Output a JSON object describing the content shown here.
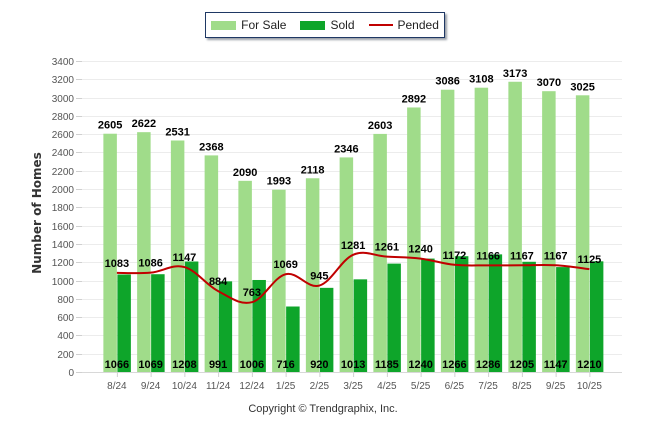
{
  "chart_data": {
    "type": "bar",
    "title": "",
    "xlabel": "",
    "ylabel": "Number of Homes",
    "ylim": [
      0,
      3400
    ],
    "ytick_step": 200,
    "grid": true,
    "legend_position": "top-center",
    "categories": [
      "8/24",
      "9/24",
      "10/24",
      "11/24",
      "12/24",
      "1/25",
      "2/25",
      "3/25",
      "4/25",
      "5/25",
      "6/25",
      "7/25",
      "8/25",
      "9/25",
      "10/25"
    ],
    "series": [
      {
        "name": "For Sale",
        "kind": "bar",
        "color": "#a0dc8a",
        "values": [
          2605,
          2622,
          2531,
          2368,
          2090,
          1993,
          2118,
          2346,
          2603,
          2892,
          3086,
          3108,
          3173,
          3070,
          3025
        ]
      },
      {
        "name": "Sold",
        "kind": "bar",
        "color": "#0ea52a",
        "values": [
          1066,
          1069,
          1208,
          991,
          1006,
          716,
          920,
          1013,
          1185,
          1240,
          1266,
          1286,
          1205,
          1147,
          1210
        ]
      },
      {
        "name": "Pended",
        "kind": "line",
        "color": "#c00000",
        "values": [
          1083,
          1086,
          1147,
          884,
          763,
          1069,
          945,
          1281,
          1261,
          1240,
          1172,
          1166,
          1167,
          1167,
          1125
        ]
      }
    ]
  },
  "legend": {
    "items": [
      {
        "label": "For Sale",
        "color": "#a0dc8a",
        "kind": "box"
      },
      {
        "label": "Sold",
        "color": "#0ea52a",
        "kind": "box"
      },
      {
        "label": "Pended",
        "color": "#c00000",
        "kind": "line"
      }
    ]
  },
  "footer": {
    "copyright": "Copyright © Trendgraphix, Inc."
  }
}
